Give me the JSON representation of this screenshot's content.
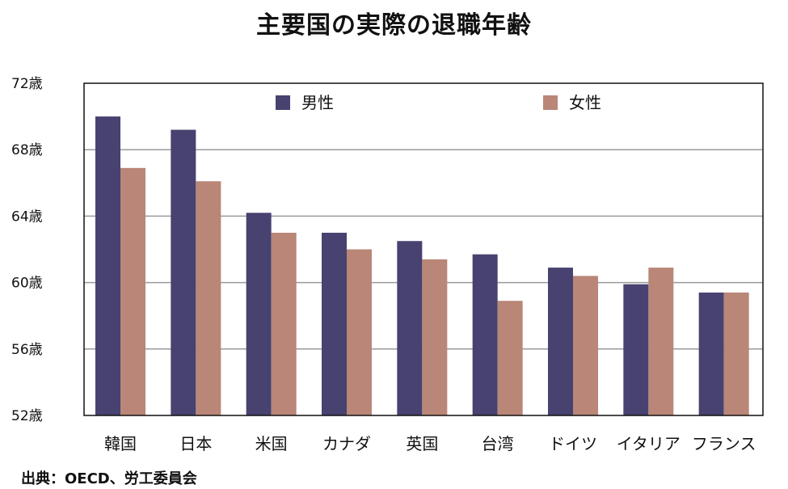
{
  "chart_data": {
    "type": "bar",
    "title": "主要国の実際の退職年齢",
    "source": "出典：OECD、労工委員会",
    "categories": [
      "韓国",
      "日本",
      "米国",
      "カナダ",
      "英国",
      "台湾",
      "ドイツ",
      "イタリア",
      "フランス"
    ],
    "series": [
      {
        "name": "男性",
        "color": "#474270",
        "values": [
          70.0,
          69.2,
          64.2,
          63.0,
          62.5,
          61.7,
          60.9,
          59.9,
          59.4
        ]
      },
      {
        "name": "女性",
        "color": "#b98677",
        "values": [
          66.9,
          66.1,
          63.0,
          62.0,
          61.4,
          58.9,
          60.4,
          60.9,
          59.4
        ]
      }
    ],
    "yticks": [
      "52歳",
      "56歳",
      "60歳",
      "64歳",
      "68歳",
      "72歳"
    ],
    "ylim": [
      52,
      72
    ],
    "grid": true,
    "legend": "top"
  }
}
